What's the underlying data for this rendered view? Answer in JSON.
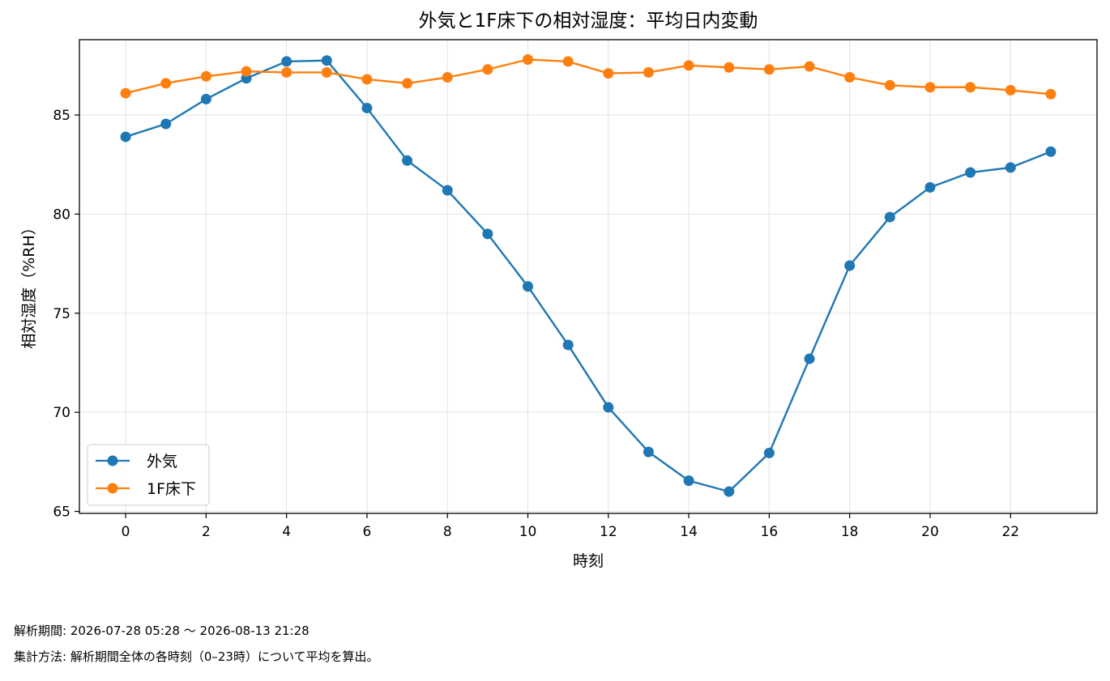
{
  "chart_data": {
    "type": "line",
    "title": "外気と1F床下の相対湿度：平均日内変動",
    "xlabel": "時刻",
    "ylabel": "相対湿度（%RH）",
    "x": [
      0,
      1,
      2,
      3,
      4,
      5,
      6,
      7,
      8,
      9,
      10,
      11,
      12,
      13,
      14,
      15,
      16,
      17,
      18,
      19,
      20,
      21,
      22,
      23
    ],
    "xlim": [
      -1.15,
      24.15
    ],
    "ylim": [
      64.9,
      88.8
    ],
    "xticks": [
      0,
      2,
      4,
      6,
      8,
      10,
      12,
      14,
      16,
      18,
      20,
      22
    ],
    "yticks": [
      65,
      70,
      75,
      80,
      85
    ],
    "grid": true,
    "legend_position": "lower-left",
    "series": [
      {
        "name": "外気",
        "color": "#1f77b4",
        "values": [
          83.9,
          84.55,
          85.8,
          86.85,
          87.7,
          87.75,
          85.35,
          82.7,
          81.2,
          79.0,
          76.35,
          73.4,
          70.25,
          68.0,
          66.55,
          66.0,
          67.95,
          72.7,
          77.4,
          79.85,
          81.35,
          82.1,
          82.35,
          83.15
        ]
      },
      {
        "name": "1F床下",
        "color": "#ff7f0e",
        "values": [
          86.1,
          86.6,
          86.95,
          87.2,
          87.15,
          87.15,
          86.8,
          86.6,
          86.9,
          87.3,
          87.8,
          87.7,
          87.1,
          87.15,
          87.5,
          87.4,
          87.3,
          87.45,
          86.9,
          86.5,
          86.4,
          86.4,
          86.25,
          86.05
        ]
      }
    ]
  },
  "notes": {
    "period": "解析期間: 2026-07-28 05:28 〜 2026-08-13 21:28",
    "method": "集計方法: 解析期間全体の各時刻（0–23時）について平均を算出。"
  }
}
